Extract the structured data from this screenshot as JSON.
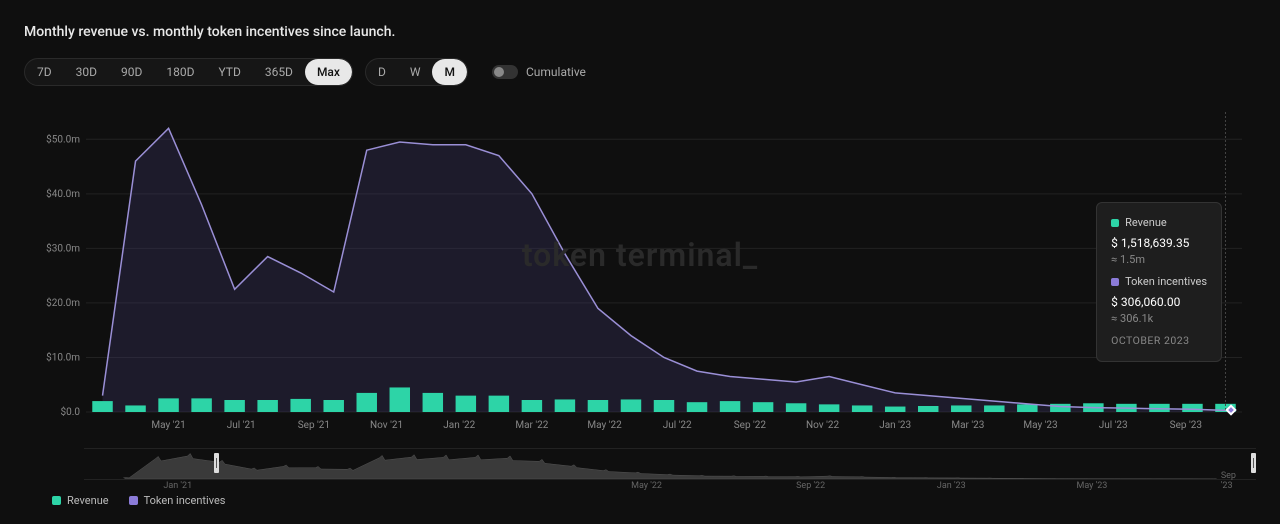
{
  "title": "Monthly revenue vs. monthly token incentives since launch.",
  "watermark": "token terminal_",
  "range_pills": [
    "7D",
    "30D",
    "90D",
    "180D",
    "YTD",
    "365D",
    "Max"
  ],
  "range_active": "Max",
  "grain_pills": [
    "D",
    "W",
    "M"
  ],
  "grain_active": "M",
  "cumulative_label": "Cumulative",
  "colors": {
    "revenue": "#2dd4a7",
    "token_incentives": "#8b7bd8",
    "background": "#0f0f0f",
    "grid": "#222222",
    "axis_text": "#888888",
    "line": "#9a8fd6",
    "area_fill": "#3a3560"
  },
  "chart": {
    "type": "bar+line",
    "y_ticks": [
      0,
      10,
      20,
      30,
      40,
      50
    ],
    "y_tick_labels": [
      "$0.0",
      "$10.0m",
      "$20.0m",
      "$30.0m",
      "$40.0m",
      "$50.0m"
    ],
    "y_max": 55,
    "x_labels": [
      "May '21",
      "Jul '21",
      "Sep '21",
      "Nov '21",
      "Jan '22",
      "Mar '22",
      "May '22",
      "Jul '22",
      "Sep '22",
      "Nov '22",
      "Jan '23",
      "Mar '23",
      "May '23",
      "Jul '23",
      "Sep '23"
    ],
    "revenue_bars": [
      2.0,
      1.2,
      2.5,
      2.5,
      2.2,
      2.2,
      2.4,
      2.2,
      3.5,
      4.5,
      3.5,
      3.0,
      3.0,
      2.2,
      2.3,
      2.2,
      2.3,
      2.2,
      1.8,
      2.0,
      1.8,
      1.6,
      1.4,
      1.2,
      1.0,
      1.1,
      1.2,
      1.2,
      1.4,
      1.5,
      1.6,
      1.5,
      1.5,
      1.5,
      1.5
    ],
    "token_line": [
      3.0,
      46.0,
      52.0,
      38.0,
      22.5,
      28.5,
      25.5,
      22.0,
      48.0,
      49.5,
      49.0,
      49.0,
      47.0,
      40.0,
      29.0,
      19.0,
      14.0,
      10.0,
      7.5,
      6.5,
      6.0,
      5.5,
      6.5,
      5.0,
      3.5,
      3.0,
      2.5,
      2.0,
      1.5,
      1.0,
      0.8,
      0.7,
      0.6,
      0.5,
      0.3
    ],
    "x_label_every": 2
  },
  "tooltip": {
    "items": [
      {
        "label": "Revenue",
        "color_key": "revenue",
        "value": "$ 1,518,639.35",
        "approx": "≈ 1.5m"
      },
      {
        "label": "Token incentives",
        "color_key": "token_incentives",
        "value": "$ 306,060.00",
        "approx": "≈ 306.1k"
      }
    ],
    "date": "OCTOBER 2023"
  },
  "brush_ticks": [
    "Jan '21",
    "May '22",
    "Sep '22",
    "Jan '23",
    "May '23",
    "Sep '23"
  ],
  "legend": [
    {
      "label": "Revenue",
      "color_key": "revenue"
    },
    {
      "label": "Token incentives",
      "color_key": "token_incentives"
    }
  ]
}
